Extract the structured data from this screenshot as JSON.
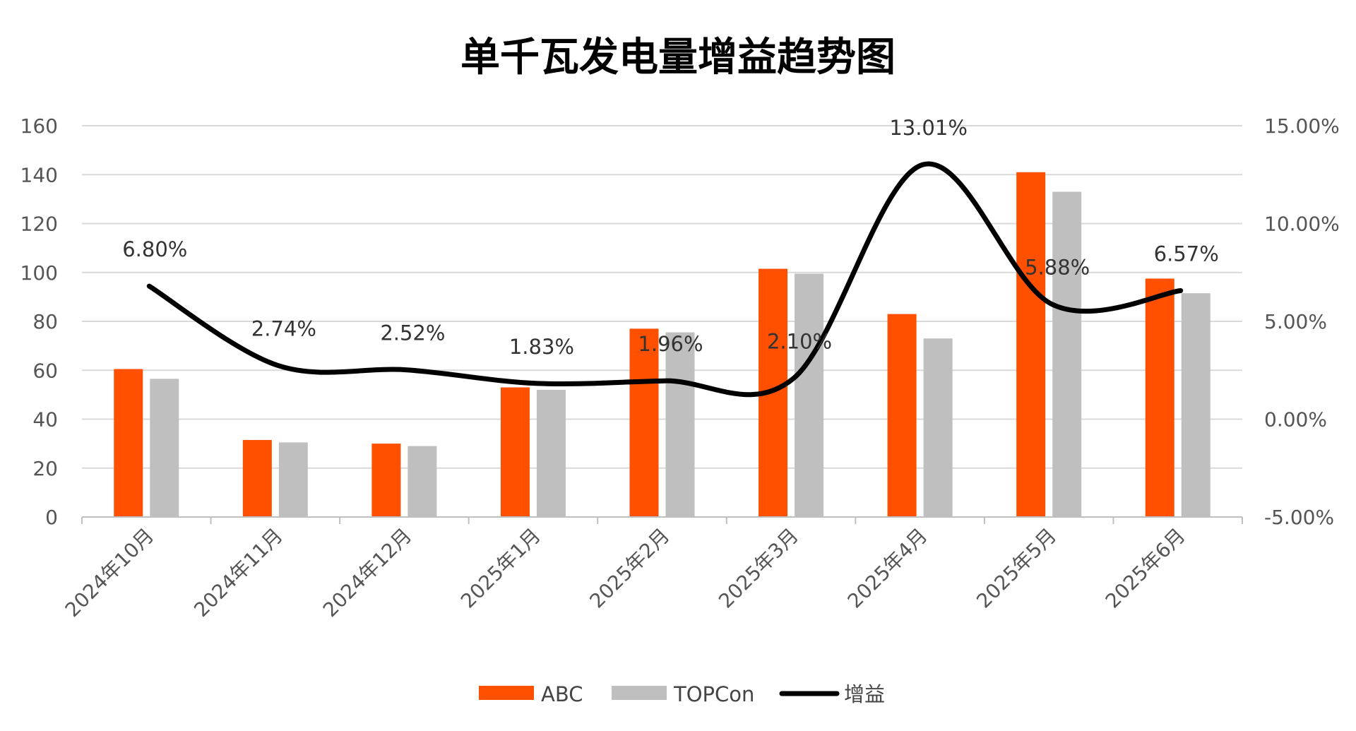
{
  "chart_data": {
    "type": "bar",
    "title": "单千瓦发电量增益趋势图",
    "categories": [
      "2024年10月",
      "2024年11月",
      "2024年12月",
      "2025年1月",
      "2025年2月",
      "2025年3月",
      "2025年4月",
      "2025年5月",
      "2025年6月"
    ],
    "series": [
      {
        "name": "ABC",
        "type": "bar",
        "axis": "left",
        "color": "#FF5000",
        "values": [
          60.5,
          31.5,
          30,
          53,
          77,
          101.5,
          83,
          141,
          97.5
        ]
      },
      {
        "name": "TOPCon",
        "type": "bar",
        "axis": "left",
        "color": "#BFBFBF",
        "values": [
          56.5,
          30.5,
          29,
          52,
          75.5,
          99.5,
          73,
          133,
          91.5
        ]
      },
      {
        "name": "增益",
        "type": "line",
        "smooth": true,
        "axis": "right",
        "color": "#000000",
        "values": [
          6.8,
          2.74,
          2.52,
          1.83,
          1.96,
          2.1,
          13.01,
          5.88,
          6.57
        ],
        "labels": [
          "6.80%",
          "2.74%",
          "2.52%",
          "1.83%",
          "1.96%",
          "2.10%",
          "13.01%",
          "5.88%",
          "6.57%"
        ]
      }
    ],
    "y_left": {
      "min": 0,
      "max": 160,
      "step": 20,
      "ticks": [
        "0",
        "20",
        "40",
        "60",
        "80",
        "100",
        "120",
        "140",
        "160"
      ]
    },
    "y_right": {
      "min": -5,
      "max": 15,
      "step": 5,
      "ticks": [
        "-5.00%",
        "0.00%",
        "5.00%",
        "10.00%",
        "15.00%"
      ]
    },
    "xlabel": "",
    "ylabel": "",
    "grid": true,
    "legend_position": "bottom"
  }
}
